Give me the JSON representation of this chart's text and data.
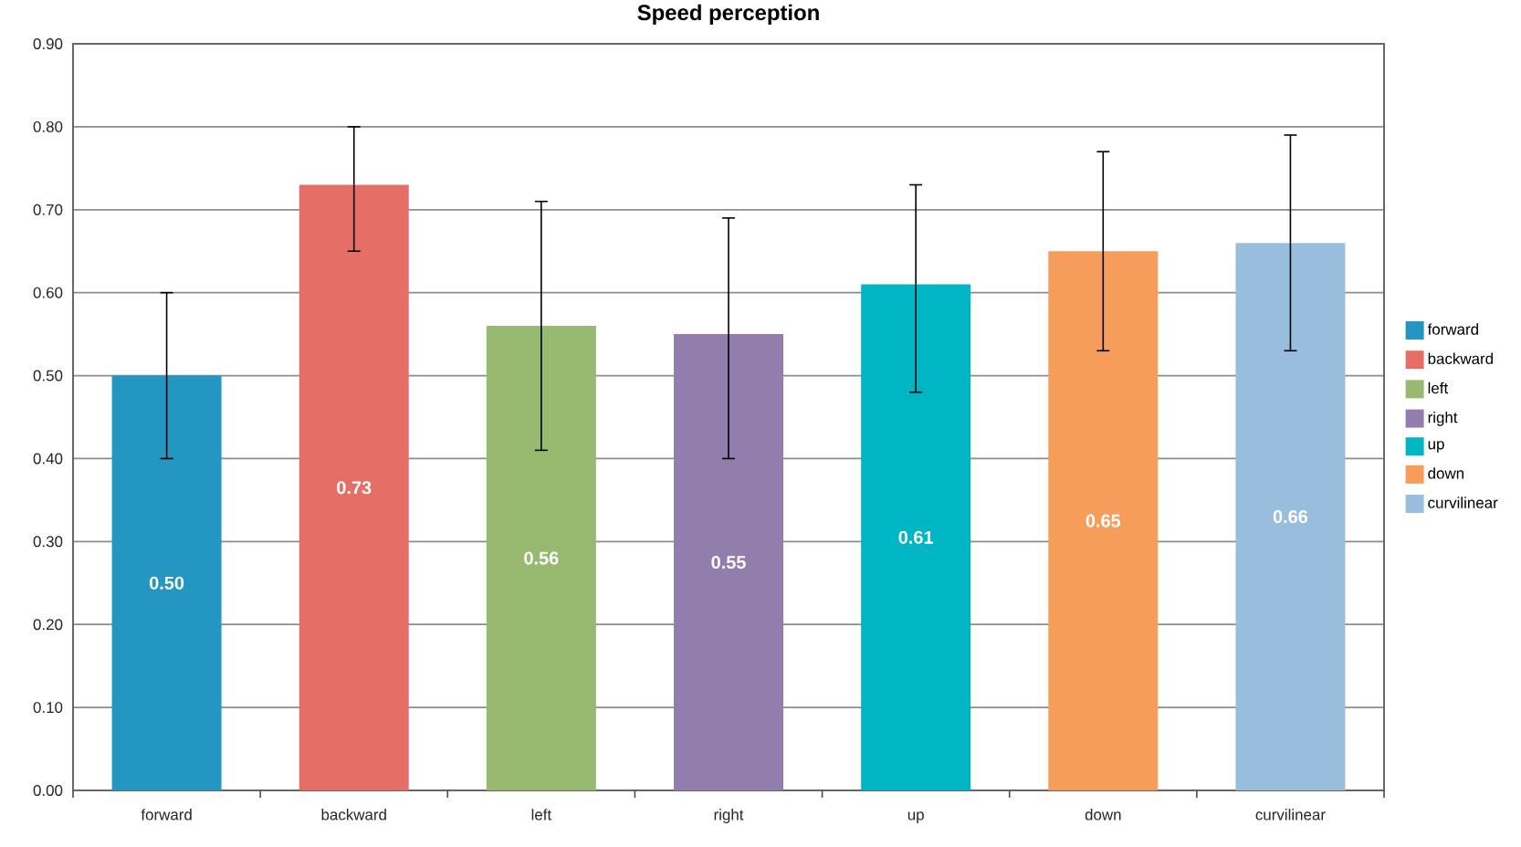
{
  "chart_data": {
    "type": "bar",
    "title": "Speed perception",
    "categories": [
      "forward",
      "backward",
      "left",
      "right",
      "up",
      "down",
      "curvilinear"
    ],
    "series": [
      {
        "name": "forward",
        "color": "#2396c1",
        "values": [
          0.5,
          null,
          null,
          null,
          null,
          null,
          null
        ],
        "value_labels": [
          "0.50",
          null,
          null,
          null,
          null,
          null,
          null
        ],
        "errors": [
          [
            0.4,
            0.6
          ],
          null,
          null,
          null,
          null,
          null,
          null
        ]
      },
      {
        "name": "backward",
        "color": "#e56f67",
        "values": [
          null,
          0.73,
          null,
          null,
          null,
          null,
          null
        ],
        "value_labels": [
          null,
          "0.73",
          null,
          null,
          null,
          null,
          null
        ],
        "errors": [
          null,
          [
            0.65,
            0.8
          ],
          null,
          null,
          null,
          null,
          null
        ]
      },
      {
        "name": "left",
        "color": "#98ba70",
        "values": [
          null,
          null,
          0.56,
          null,
          null,
          null,
          null
        ],
        "value_labels": [
          null,
          null,
          "0.56",
          null,
          null,
          null,
          null
        ],
        "errors": [
          null,
          null,
          [
            0.41,
            0.71
          ],
          null,
          null,
          null,
          null
        ]
      },
      {
        "name": "right",
        "color": "#927ead",
        "values": [
          null,
          null,
          null,
          0.55,
          null,
          null,
          null
        ],
        "value_labels": [
          null,
          null,
          null,
          "0.55",
          null,
          null,
          null
        ],
        "errors": [
          null,
          null,
          null,
          [
            0.4,
            0.69
          ],
          null,
          null,
          null
        ]
      },
      {
        "name": "up",
        "color": "#00b6c4",
        "values": [
          null,
          null,
          null,
          null,
          0.61,
          null,
          null
        ],
        "value_labels": [
          null,
          null,
          null,
          null,
          "0.61",
          null,
          null
        ],
        "errors": [
          null,
          null,
          null,
          null,
          [
            0.48,
            0.73
          ],
          null,
          null
        ]
      },
      {
        "name": "down",
        "color": "#f79d5b",
        "values": [
          null,
          null,
          null,
          null,
          null,
          0.65,
          null
        ],
        "value_labels": [
          null,
          null,
          null,
          null,
          null,
          "0.65",
          null
        ],
        "errors": [
          null,
          null,
          null,
          null,
          null,
          [
            0.53,
            0.77
          ],
          null
        ]
      },
      {
        "name": "curvilinear",
        "color": "#98bddd",
        "values": [
          null,
          null,
          null,
          null,
          null,
          null,
          0.66
        ],
        "value_labels": [
          null,
          null,
          null,
          null,
          null,
          null,
          "0.66"
        ],
        "errors": [
          null,
          null,
          null,
          null,
          null,
          null,
          [
            0.53,
            0.79
          ]
        ]
      }
    ],
    "ylim": [
      0,
      0.9
    ],
    "yticks": [
      {
        "value": 0,
        "label": "0.00"
      },
      {
        "value": 0.1,
        "label": "0.10"
      },
      {
        "value": 0.2,
        "label": "0.20"
      },
      {
        "value": 0.3,
        "label": "0.30"
      },
      {
        "value": 0.4,
        "label": "0.40"
      },
      {
        "value": 0.5,
        "label": "0.50"
      },
      {
        "value": 0.6,
        "label": "0.60"
      },
      {
        "value": 0.7,
        "label": "0.70"
      },
      {
        "value": 0.8,
        "label": "0.80"
      },
      {
        "value": 0.9,
        "label": "0.90"
      }
    ],
    "grid": "y",
    "legend": "right"
  }
}
